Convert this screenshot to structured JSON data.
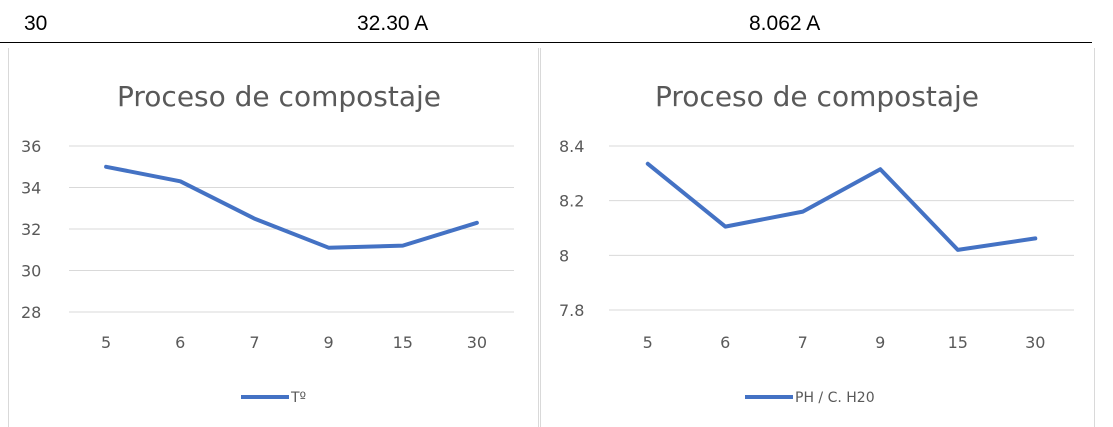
{
  "table_row": {
    "day": "30",
    "temperature": "32.30 A",
    "ph": "8.062 A"
  },
  "colors": {
    "series": "#4472C4",
    "grid": "#d9d9d9",
    "text": "#595959"
  },
  "chart_data": [
    {
      "type": "line",
      "title": "Proceso de compostaje",
      "categories": [
        "5",
        "6",
        "7",
        "9",
        "15",
        "30"
      ],
      "series": [
        {
          "name": "Tº",
          "values": [
            35.0,
            34.3,
            32.5,
            31.1,
            31.2,
            32.3
          ]
        }
      ],
      "ylim": [
        28,
        36
      ],
      "yticks": [
        "28",
        "30",
        "32",
        "34",
        "36"
      ],
      "ytick_values": [
        28,
        30,
        32,
        34,
        36
      ],
      "grid": true,
      "legend": "bottom"
    },
    {
      "type": "line",
      "title": "Proceso de compostaje",
      "categories": [
        "5",
        "6",
        "7",
        "9",
        "15",
        "30"
      ],
      "series": [
        {
          "name": "PH / C. H20",
          "values": [
            8.335,
            8.105,
            8.16,
            8.315,
            8.02,
            8.062
          ]
        }
      ],
      "ylim": [
        7.8,
        8.4
      ],
      "yticks": [
        "7.8",
        "8",
        "8.2",
        "8.4"
      ],
      "ytick_values": [
        7.8,
        8.0,
        8.2,
        8.4
      ],
      "grid": true,
      "legend": "bottom"
    }
  ]
}
